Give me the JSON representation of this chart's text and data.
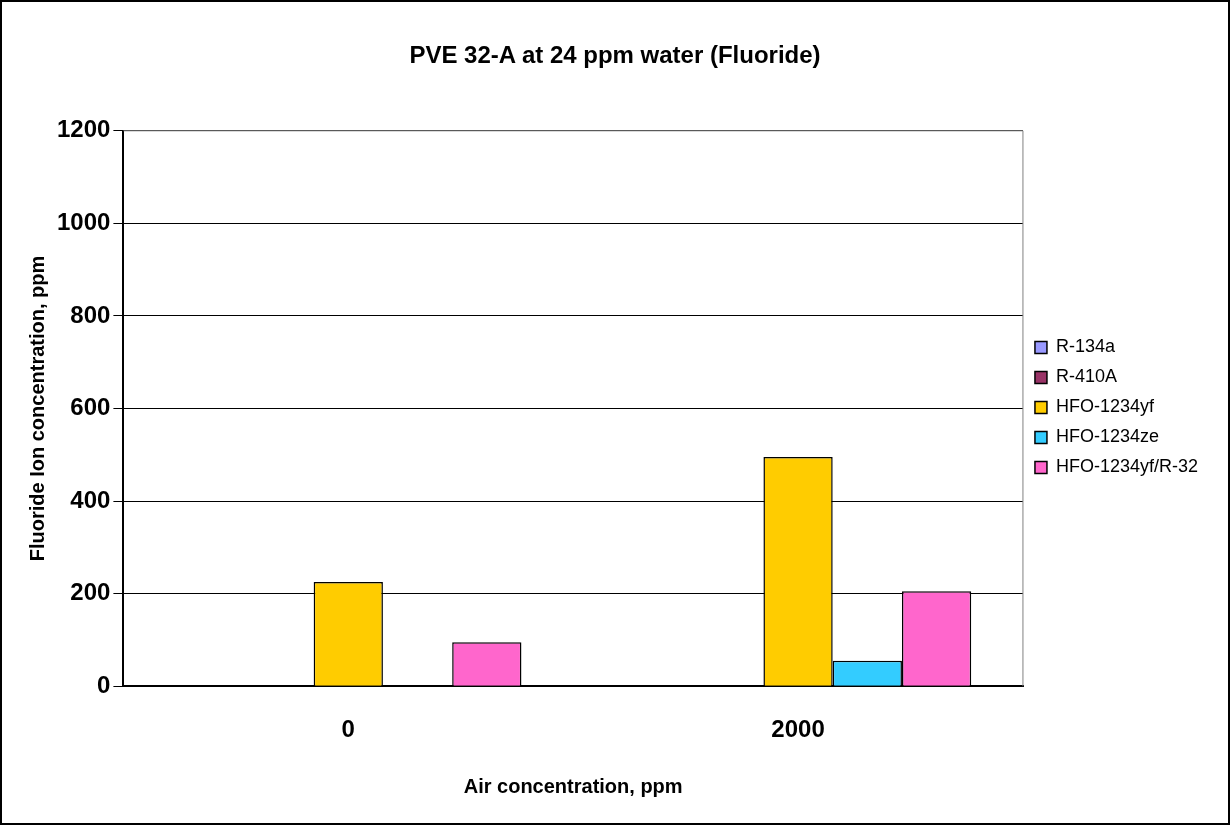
{
  "chart_data": {
    "type": "bar",
    "title": "PVE 32-A at 24 ppm water (Fluoride)",
    "xlabel": "Air concentration, ppm",
    "ylabel": "Fluoride Ion concentration, ppm",
    "categories": [
      "0",
      "2000"
    ],
    "series": [
      {
        "name": "R-134a",
        "color": "#9999ff",
        "values": [
          null,
          null
        ]
      },
      {
        "name": "R-410A",
        "color": "#993366",
        "values": [
          null,
          null
        ]
      },
      {
        "name": "HFO-1234yf",
        "color": "#ffcc00",
        "values": [
          225,
          495
        ]
      },
      {
        "name": "HFO-1234ze",
        "color": "#33ccff",
        "values": [
          null,
          55
        ]
      },
      {
        "name": "HFO-1234yf/R-32",
        "color": "#ff66cc",
        "values": [
          95,
          205
        ]
      }
    ],
    "ylim": [
      0,
      1200
    ],
    "yticks": [
      0,
      200,
      400,
      600,
      800,
      1000,
      1200
    ],
    "grid": "y",
    "legend": "right"
  }
}
